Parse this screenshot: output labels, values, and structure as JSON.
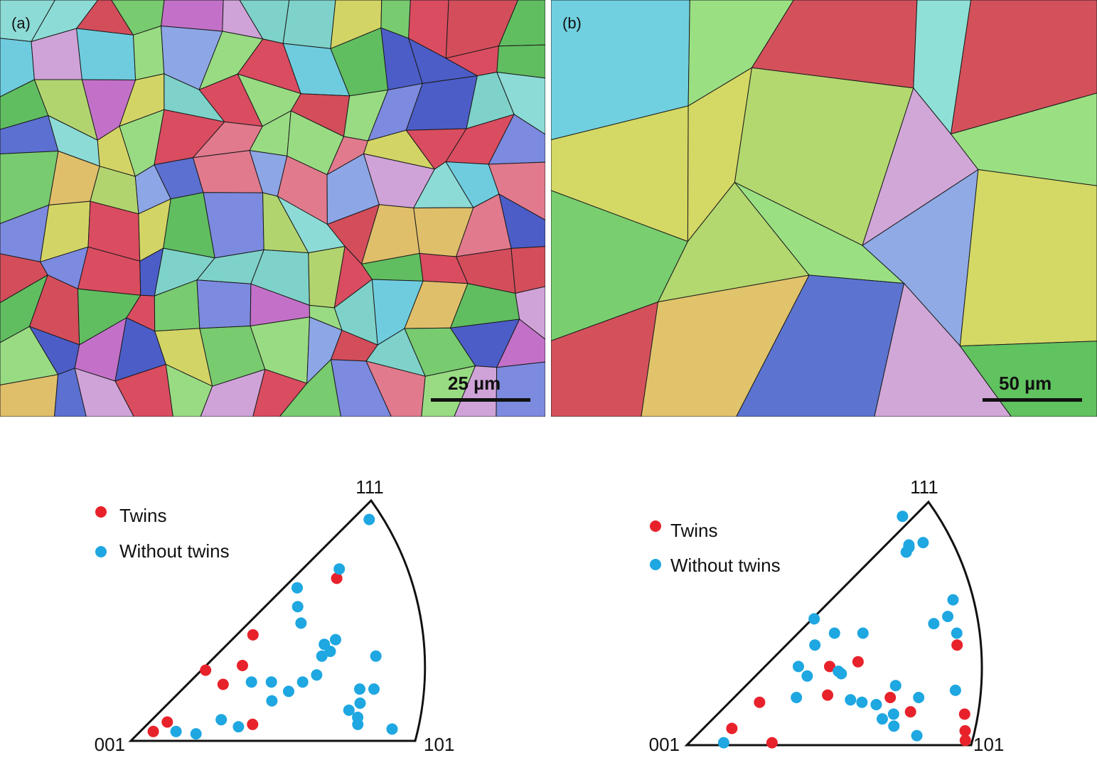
{
  "panels": {
    "a": {
      "label": "(a)",
      "scale_bar": "25 µm"
    },
    "b": {
      "label": "(b)",
      "scale_bar": "50 µm"
    }
  },
  "colors": {
    "twins": "#e8222b",
    "without_twins": "#1ea7e1",
    "grain_palette": [
      "#e0495a",
      "#d84a55",
      "#5a6fd0",
      "#4a5bc8",
      "#7d8ae0",
      "#5fc15a",
      "#78cf6a",
      "#9be07f",
      "#7fd6c9",
      "#8fe0d6",
      "#d8d860",
      "#e6c266",
      "#d4a5d8",
      "#c770c8",
      "#8fa8e6",
      "#6fd0e0",
      "#b5d86a",
      "#e77a8a"
    ]
  },
  "chart_data": [
    {
      "type": "scatter",
      "title": "",
      "corner_labels": {
        "origin": "001",
        "right": "101",
        "top": "111"
      },
      "legend": {
        "position": "top-left",
        "entries": [
          "Twins",
          "Without twins"
        ]
      },
      "series": [
        {
          "name": "Twins",
          "points": [
            [
              0.08,
              0.04
            ],
            [
              0.13,
              0.08
            ],
            [
              0.27,
              0.3
            ],
            [
              0.33,
              0.24
            ],
            [
              0.4,
              0.32
            ],
            [
              0.44,
              0.45
            ],
            [
              0.43,
              0.07
            ],
            [
              0.74,
              0.69
            ]
          ]
        },
        {
          "name": "Without twins",
          "points": [
            [
              0.16,
              0.04
            ],
            [
              0.23,
              0.03
            ],
            [
              0.32,
              0.09
            ],
            [
              0.38,
              0.06
            ],
            [
              0.43,
              0.25
            ],
            [
              0.5,
              0.17
            ],
            [
              0.5,
              0.25
            ],
            [
              0.56,
              0.21
            ],
            [
              0.61,
              0.25
            ],
            [
              0.66,
              0.28
            ],
            [
              0.68,
              0.36
            ],
            [
              0.69,
              0.41
            ],
            [
              0.71,
              0.38
            ],
            [
              0.73,
              0.43
            ],
            [
              0.6,
              0.57
            ],
            [
              0.6,
              0.65
            ],
            [
              0.61,
              0.5
            ],
            [
              0.75,
              0.73
            ],
            [
              0.87,
              0.36
            ],
            [
              0.81,
              0.22
            ],
            [
              0.81,
              0.16
            ],
            [
              0.8,
              0.1
            ],
            [
              0.77,
              0.13
            ],
            [
              0.8,
              0.07
            ],
            [
              0.86,
              0.22
            ],
            [
              0.92,
              0.05
            ],
            [
              0.86,
              0.94
            ]
          ]
        }
      ]
    },
    {
      "type": "scatter",
      "title": "",
      "corner_labels": {
        "origin": "001",
        "right": "101",
        "top": "111"
      },
      "legend": {
        "position": "top-left",
        "entries": [
          "Twins",
          "Without twins"
        ]
      },
      "series": [
        {
          "name": "Twins",
          "points": [
            [
              0.16,
              0.07
            ],
            [
              0.26,
              0.18
            ],
            [
              0.3,
              0.01
            ],
            [
              0.5,
              0.21
            ],
            [
              0.51,
              0.33
            ],
            [
              0.61,
              0.35
            ],
            [
              0.72,
              0.2
            ],
            [
              0.79,
              0.14
            ],
            [
              0.96,
              0.42
            ],
            [
              0.98,
              0.13
            ],
            [
              0.98,
              0.06
            ],
            [
              0.98,
              0.02
            ]
          ]
        },
        {
          "name": "Without twins",
          "points": [
            [
              0.13,
              0.01
            ],
            [
              0.39,
              0.2
            ],
            [
              0.4,
              0.33
            ],
            [
              0.43,
              0.29
            ],
            [
              0.46,
              0.42
            ],
            [
              0.46,
              0.53
            ],
            [
              0.53,
              0.47
            ],
            [
              0.54,
              0.31
            ],
            [
              0.55,
              0.3
            ],
            [
              0.58,
              0.19
            ],
            [
              0.62,
              0.18
            ],
            [
              0.63,
              0.47
            ],
            [
              0.67,
              0.17
            ],
            [
              0.73,
              0.13
            ],
            [
              0.69,
              0.11
            ],
            [
              0.73,
              0.08
            ],
            [
              0.81,
              0.04
            ],
            [
              0.74,
              0.25
            ],
            [
              0.82,
              0.2
            ],
            [
              0.95,
              0.23
            ],
            [
              0.88,
              0.51
            ],
            [
              0.93,
              0.54
            ],
            [
              0.96,
              0.47
            ],
            [
              0.95,
              0.61
            ],
            [
              0.79,
              0.81
            ],
            [
              0.8,
              0.84
            ],
            [
              0.85,
              0.85
            ],
            [
              0.8,
              0.83
            ],
            [
              0.78,
              0.96
            ]
          ]
        }
      ]
    }
  ]
}
